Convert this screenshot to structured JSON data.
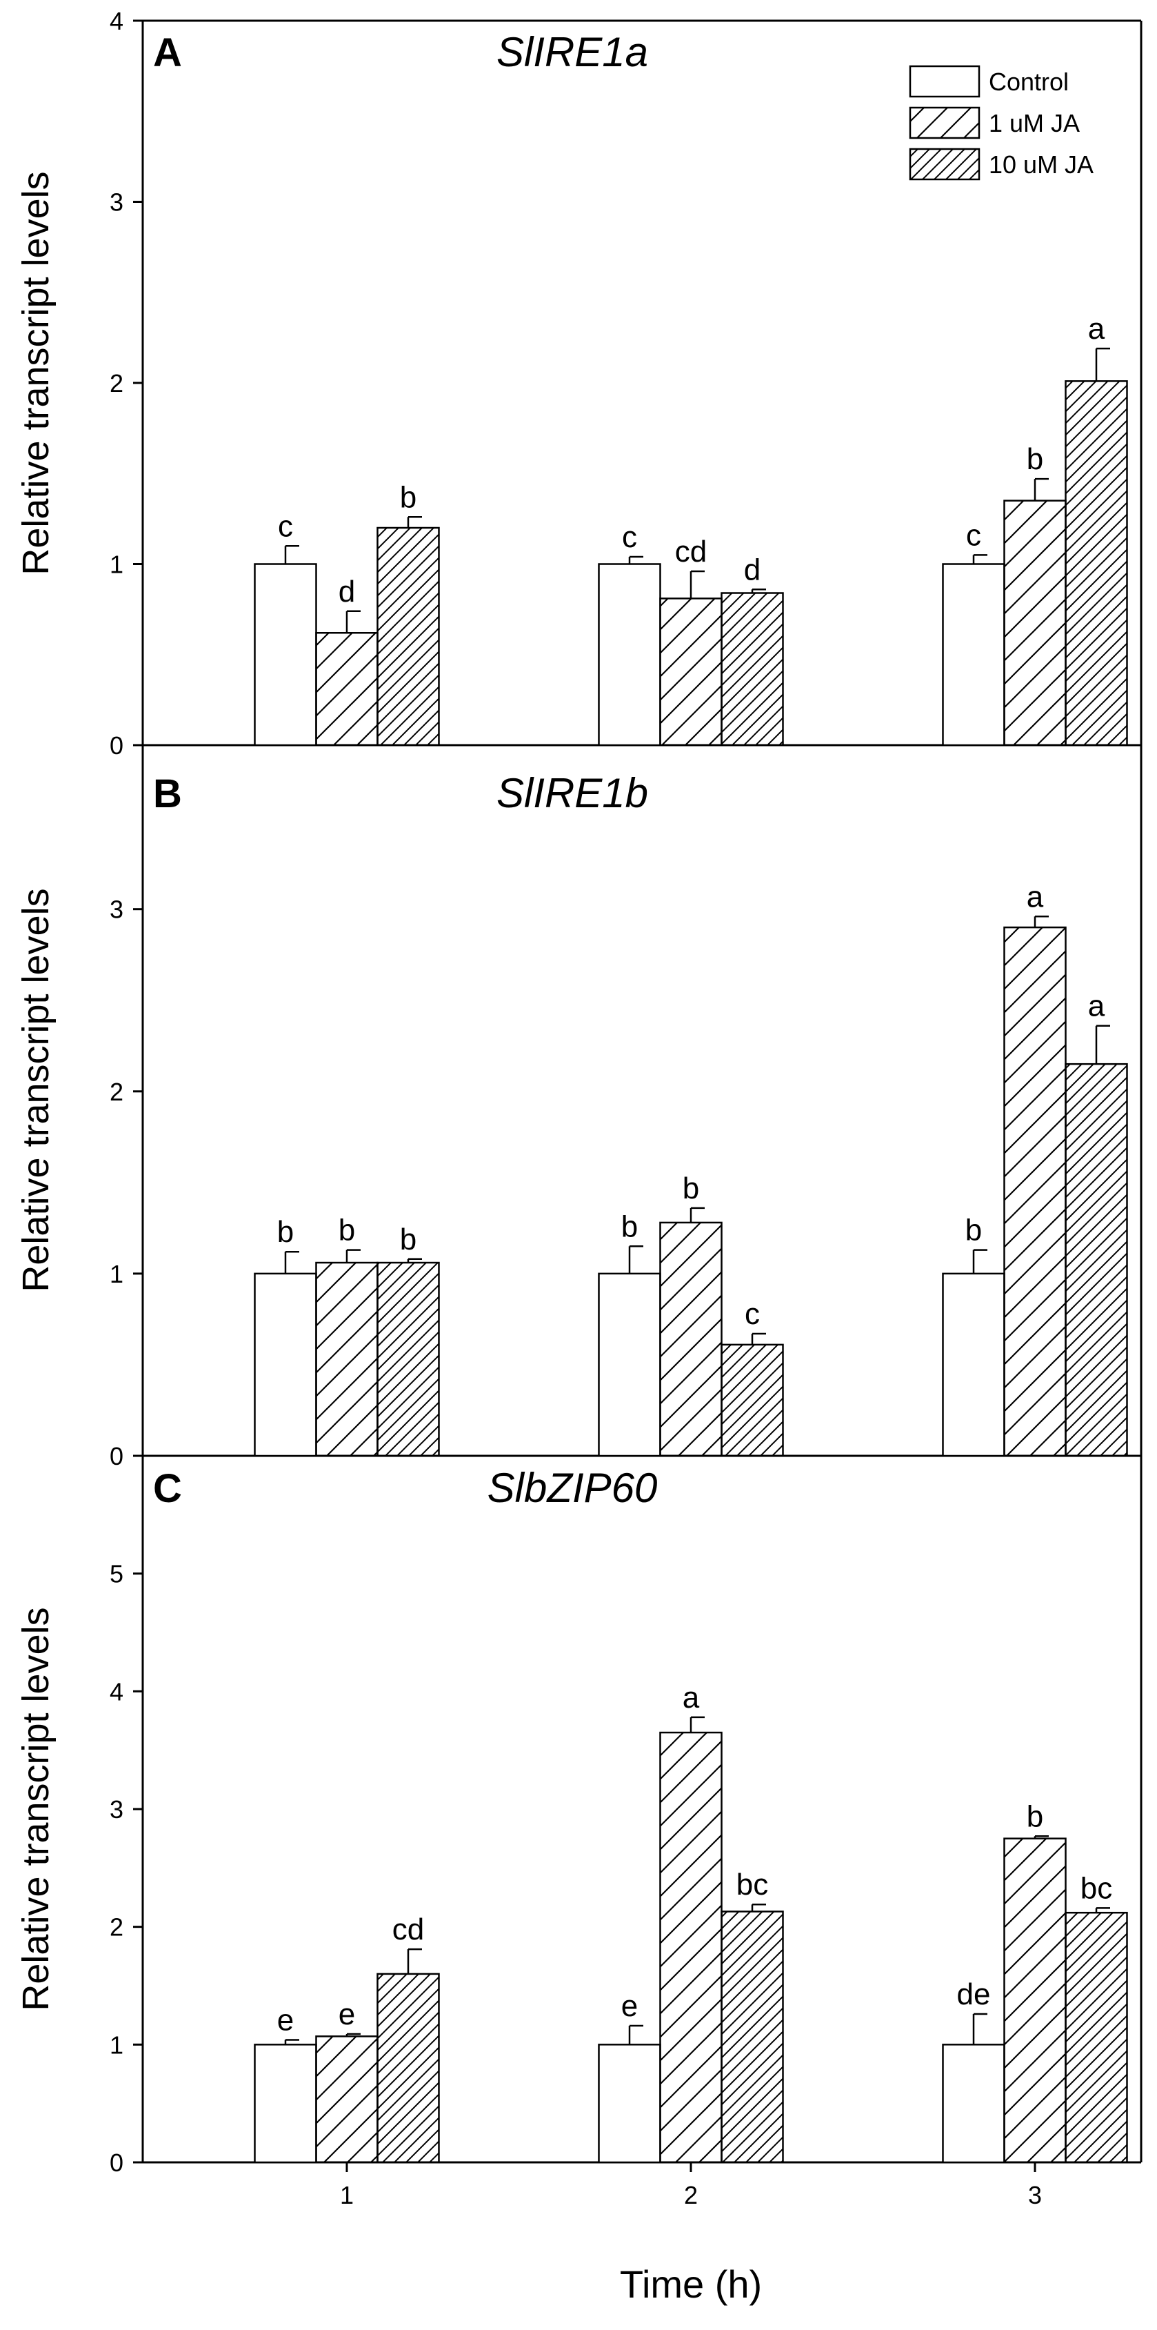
{
  "chart_data": {
    "type": "bar",
    "xlabel": "Time (h)",
    "x_tick_labels": [
      "1",
      "2",
      "3"
    ],
    "legend": {
      "placement": "top-right",
      "entries": [
        {
          "name": "Control",
          "pattern": "none"
        },
        {
          "name": "1 uM JA",
          "pattern": "sparse-hatch"
        },
        {
          "name": "10 uM JA",
          "pattern": "dense-hatch"
        }
      ]
    },
    "panels": [
      {
        "letter": "A",
        "title": "SlIRE1a",
        "ylabel": "Relative transcript levels",
        "ylim": [
          0,
          4
        ],
        "yticks": [
          0,
          1,
          2,
          3,
          4
        ],
        "series": [
          {
            "name": "Control",
            "values": [
              1.0,
              1.0,
              1.0
            ],
            "errors": [
              0.1,
              0.04,
              0.05
            ],
            "letters": [
              "c",
              "c",
              "c"
            ]
          },
          {
            "name": "1 uM JA",
            "values": [
              0.62,
              0.81,
              1.35
            ],
            "errors": [
              0.12,
              0.15,
              0.12
            ],
            "letters": [
              "d",
              "cd",
              "b"
            ]
          },
          {
            "name": "10 uM JA",
            "values": [
              1.2,
              0.84,
              2.01
            ],
            "errors": [
              0.06,
              0.02,
              0.18
            ],
            "letters": [
              "b",
              "d",
              "a"
            ]
          }
        ]
      },
      {
        "letter": "B",
        "title": "SlIRE1b",
        "ylabel": "Relative transcript levels",
        "ylim": [
          0,
          3.9
        ],
        "yticks": [
          0,
          1,
          2,
          3
        ],
        "series": [
          {
            "name": "Control",
            "values": [
              1.0,
              1.0,
              1.0
            ],
            "errors": [
              0.12,
              0.15,
              0.13
            ],
            "letters": [
              "b",
              "b",
              "b"
            ]
          },
          {
            "name": "1 uM JA",
            "values": [
              1.06,
              1.28,
              2.9
            ],
            "errors": [
              0.07,
              0.08,
              0.06
            ],
            "letters": [
              "b",
              "b",
              "a"
            ]
          },
          {
            "name": "10 uM JA",
            "values": [
              1.06,
              0.61,
              2.15
            ],
            "errors": [
              0.02,
              0.06,
              0.21
            ],
            "letters": [
              "b",
              "c",
              "a"
            ]
          }
        ]
      },
      {
        "letter": "C",
        "title": "SlbZIP60",
        "ylabel": "Relative transcript levels",
        "ylim": [
          0,
          6
        ],
        "yticks": [
          0,
          1,
          2,
          3,
          4,
          5
        ],
        "series": [
          {
            "name": "Control",
            "values": [
              1.0,
              1.0,
              1.0
            ],
            "errors": [
              0.04,
              0.16,
              0.26
            ],
            "letters": [
              "e",
              "e",
              "de"
            ]
          },
          {
            "name": "1 uM JA",
            "values": [
              1.07,
              3.65,
              2.75
            ],
            "errors": [
              0.02,
              0.13,
              0.02
            ],
            "letters": [
              "e",
              "a",
              "b"
            ]
          },
          {
            "name": "10 uM JA",
            "values": [
              1.6,
              2.13,
              2.12
            ],
            "errors": [
              0.21,
              0.06,
              0.04
            ],
            "letters": [
              "cd",
              "bc",
              "bc"
            ]
          }
        ]
      }
    ]
  }
}
